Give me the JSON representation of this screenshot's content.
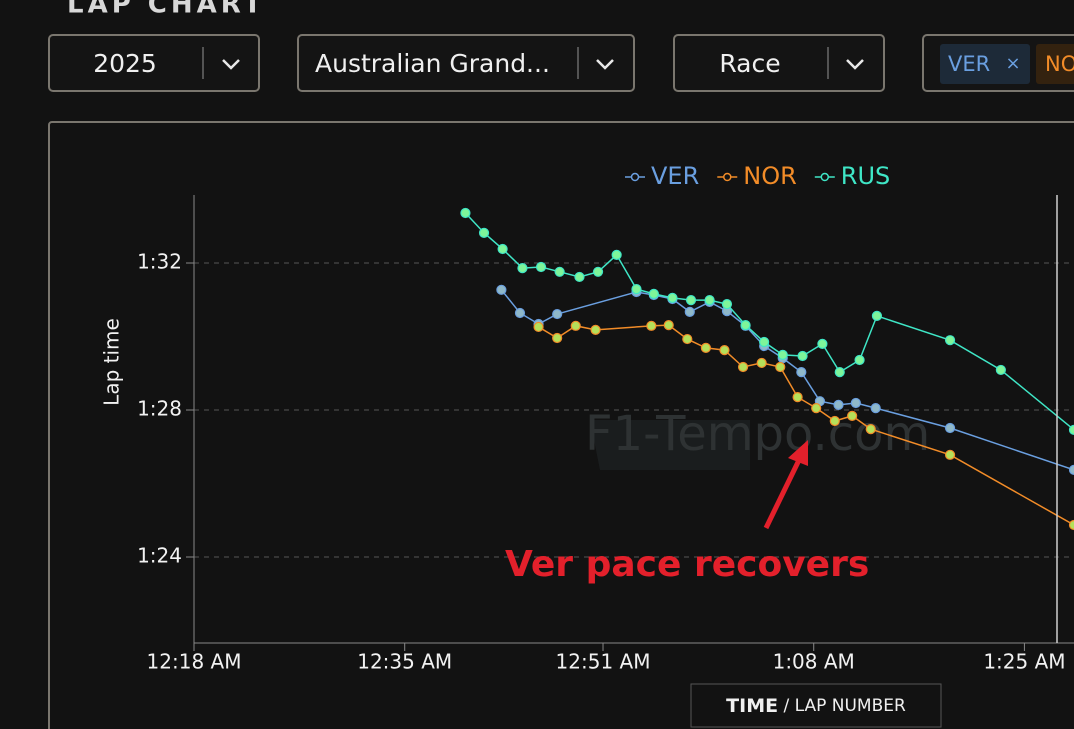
{
  "header": {
    "title": "LAP CHART"
  },
  "controls": {
    "season": "2025",
    "event": "Australian Grand...",
    "session": "Race",
    "drivers": [
      "VER",
      "NOR"
    ]
  },
  "chart_data": {
    "type": "line",
    "y_label": "Lap time",
    "annotation": "Ver pace recovers",
    "watermark": "F1-Tempo.com",
    "grid": true,
    "legend": "top",
    "xlim": [
      18,
      89.0
    ],
    "xticks": [
      {
        "value": 18,
        "label": "12:18 AM"
      },
      {
        "value": 35,
        "label": "12:35 AM"
      },
      {
        "value": 51,
        "label": "12:51 AM"
      },
      {
        "value": 68,
        "label": "1:08 AM"
      },
      {
        "value": 85,
        "label": "1:25 AM"
      }
    ],
    "ylim": [
      81.66,
      93.85
    ],
    "yticks": [
      {
        "value": 84,
        "label": "1:24"
      },
      {
        "value": 88,
        "label": "1:28"
      },
      {
        "value": 92,
        "label": "1:32"
      }
    ],
    "series": [
      {
        "name": "VER",
        "color": "#6a9fe0",
        "marker_color": "#8fb8c9",
        "x": [
          42.8,
          44.3,
          45.8,
          47.3,
          53.7,
          55.1,
          56.6,
          58.0,
          59.6,
          61.0,
          62.5,
          64.0,
          65.5,
          67.0,
          68.5,
          70.0,
          71.4,
          73.0,
          79.0,
          89.0
        ],
        "values": [
          91.27,
          90.64,
          90.34,
          90.61,
          91.21,
          91.13,
          91.02,
          90.67,
          90.94,
          90.69,
          90.29,
          89.74,
          89.41,
          89.03,
          88.24,
          88.14,
          88.19,
          88.05,
          87.51,
          86.37
        ]
      },
      {
        "name": "NOR",
        "color": "#f28c28",
        "marker_color": "#b5e05a",
        "x": [
          45.8,
          47.3,
          48.8,
          50.4,
          54.9,
          56.3,
          57.8,
          59.3,
          60.8,
          62.3,
          63.8,
          65.3,
          66.7,
          68.2,
          69.7,
          71.1,
          72.6,
          79.0,
          89.0
        ],
        "values": [
          90.26,
          89.96,
          90.29,
          90.18,
          90.29,
          90.31,
          89.93,
          89.69,
          89.63,
          89.17,
          89.28,
          89.17,
          88.35,
          88.05,
          87.7,
          87.84,
          87.48,
          86.78,
          84.87
        ]
      },
      {
        "name": "RUS",
        "color": "#3fe6c6",
        "marker_color": "#7ef59a",
        "x": [
          39.9,
          41.4,
          42.9,
          44.5,
          46.0,
          47.5,
          49.1,
          50.6,
          52.1,
          53.7,
          55.1,
          56.6,
          58.1,
          59.6,
          61.0,
          62.5,
          64.0,
          65.5,
          67.1,
          68.7,
          70.1,
          71.7,
          73.1,
          79.0,
          83.1,
          89.0
        ],
        "values": [
          93.36,
          92.82,
          92.38,
          91.86,
          91.89,
          91.76,
          91.62,
          91.76,
          92.22,
          91.29,
          91.16,
          91.05,
          90.99,
          90.99,
          90.88,
          90.31,
          89.85,
          89.5,
          89.47,
          89.8,
          89.03,
          89.36,
          90.56,
          89.9,
          89.09,
          87.46
        ]
      }
    ]
  },
  "x_toggle": {
    "active": "TIME",
    "other": "/ LAP NUMBER"
  }
}
